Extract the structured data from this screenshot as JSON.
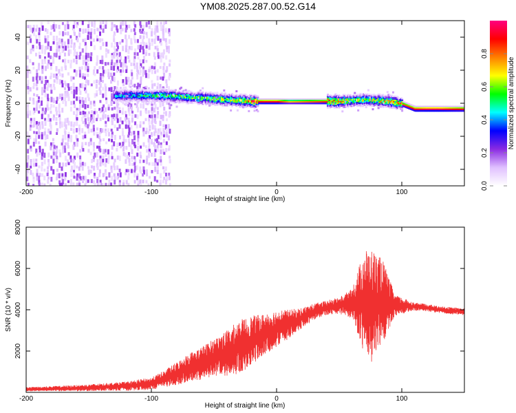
{
  "figure_title": "YM08.2025.287.00.52.G14",
  "chart_data": [
    {
      "type": "heatmap",
      "title": "",
      "xlabel": "Height of straight line (km)",
      "ylabel": "Frequency (Hz)",
      "xlim": [
        -200,
        150
      ],
      "ylim": [
        -50,
        50
      ],
      "x_ticks": [
        -200,
        -100,
        0,
        100
      ],
      "y_ticks": [
        -40,
        -20,
        0,
        20,
        40
      ],
      "colorbar": {
        "label": "Normalized spectral amplitude",
        "range": [
          0,
          1
        ],
        "ticks": [
          0.0,
          0.2,
          0.4,
          0.6,
          0.8
        ],
        "colormap": [
          "#ffffff",
          "#e0c0ff",
          "#8a2be2",
          "#0000ff",
          "#00ffff",
          "#00ff00",
          "#ffff00",
          "#ff8000",
          "#ff0000",
          "#ff0080"
        ]
      },
      "ridge": {
        "x": [
          -130,
          -110,
          -90,
          -70,
          -50,
          -30,
          -20,
          -10,
          0,
          10,
          20,
          30,
          40,
          50,
          60,
          70,
          80,
          90,
          100,
          110,
          120,
          130,
          140,
          150
        ],
        "frequency": [
          5,
          5,
          5,
          4,
          3,
          2,
          1.5,
          1.5,
          1.5,
          1.5,
          1.5,
          1.5,
          1.5,
          1.5,
          2,
          2.5,
          2,
          1.5,
          0,
          -3,
          -3,
          -3,
          -3,
          -3
        ],
        "peak_amplitude": [
          0.4,
          0.5,
          0.55,
          0.6,
          0.6,
          0.65,
          0.9,
          0.95,
          0.95,
          0.75,
          0.8,
          0.85,
          0.9,
          0.8,
          0.65,
          0.65,
          0.7,
          0.75,
          0.85,
          0.95,
          1.0,
          1.0,
          0.95,
          0.9
        ]
      },
      "noise_region": {
        "x_from": -200,
        "x_to": -95,
        "amplitude": 0.15
      }
    },
    {
      "type": "line",
      "title": "",
      "xlabel": "Height of straight line (km)",
      "ylabel": "SNR (10 * v/v)",
      "xlim": [
        -200,
        150
      ],
      "ylim": [
        0,
        8000
      ],
      "x_ticks": [
        -200,
        -100,
        0,
        100
      ],
      "y_ticks": [
        2000,
        4000,
        6000,
        8000
      ],
      "line_color": "#f03030",
      "series": [
        {
          "x": [
            -200,
            -180,
            -160,
            -140,
            -120,
            -100,
            -90,
            -80,
            -70,
            -60,
            -50,
            -40,
            -30,
            -20,
            -10,
            0,
            10,
            20,
            30,
            40,
            50,
            60,
            65,
            70,
            75,
            80,
            85,
            90,
            95,
            100,
            110,
            120,
            130,
            140,
            150
          ],
          "y": [
            150,
            180,
            200,
            250,
            300,
            420,
            650,
            900,
            1200,
            1400,
            1700,
            1900,
            2200,
            2500,
            2800,
            3100,
            3300,
            3600,
            3900,
            4100,
            4200,
            4300,
            4350,
            4400,
            4200,
            4300,
            4400,
            4300,
            4200,
            4200,
            4150,
            4100,
            4000,
            3950,
            3900
          ],
          "spread": [
            100,
            120,
            150,
            180,
            220,
            300,
            400,
            550,
            700,
            800,
            900,
            1100,
            1300,
            1200,
            1000,
            900,
            700,
            500,
            400,
            350,
            400,
            700,
            1600,
            2500,
            2800,
            2400,
            2000,
            1200,
            500,
            400,
            200,
            180,
            170,
            170,
            170
          ]
        }
      ]
    }
  ]
}
